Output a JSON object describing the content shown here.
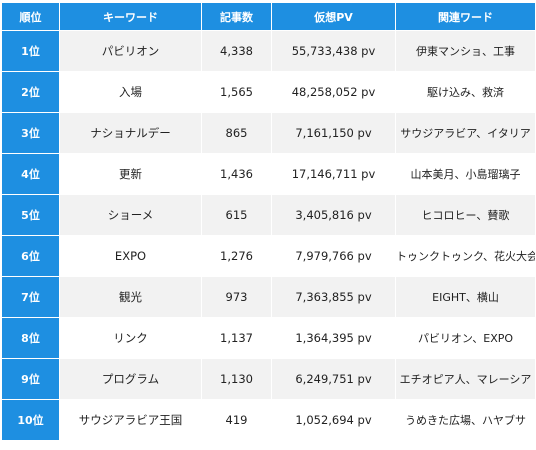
{
  "table": {
    "headers": [
      "順位",
      "キーワード",
      "記事数",
      "仮想PV",
      "関連ワード"
    ],
    "rows": [
      {
        "rank": "1位",
        "keyword": "パビリオン",
        "articles": "4,338",
        "pv": "55,733,438 pv",
        "related": "伊東マンショ、工事"
      },
      {
        "rank": "2位",
        "keyword": "入場",
        "articles": "1,565",
        "pv": "48,258,052 pv",
        "related": "駆け込み、救済"
      },
      {
        "rank": "3位",
        "keyword": "ナショナルデー",
        "articles": "865",
        "pv": "7,161,150 pv",
        "related": "サウジアラビア、イタリア"
      },
      {
        "rank": "4位",
        "keyword": "更新",
        "articles": "1,436",
        "pv": "17,146,711 pv",
        "related": "山本美月、小島瑠璃子"
      },
      {
        "rank": "5位",
        "keyword": "ショーメ",
        "articles": "615",
        "pv": "3,405,816 pv",
        "related": "ヒコロヒー、賛歌"
      },
      {
        "rank": "6位",
        "keyword": "EXPO",
        "articles": "1,276",
        "pv": "7,979,766 pv",
        "related": "トゥンクトゥンク、花火大会"
      },
      {
        "rank": "7位",
        "keyword": "観光",
        "articles": "973",
        "pv": "7,363,855 pv",
        "related": "EIGHT、横山"
      },
      {
        "rank": "8位",
        "keyword": "リンク",
        "articles": "1,137",
        "pv": "1,364,395 pv",
        "related": "パビリオン、EXPO"
      },
      {
        "rank": "9位",
        "keyword": "プログラム",
        "articles": "1,130",
        "pv": "6,249,751 pv",
        "related": "エチオピア人、マレーシア"
      },
      {
        "rank": "10位",
        "keyword": "サウジアラビア王国",
        "articles": "419",
        "pv": "1,052,694 pv",
        "related": "うめきた広場、ハヤブサ"
      }
    ]
  }
}
